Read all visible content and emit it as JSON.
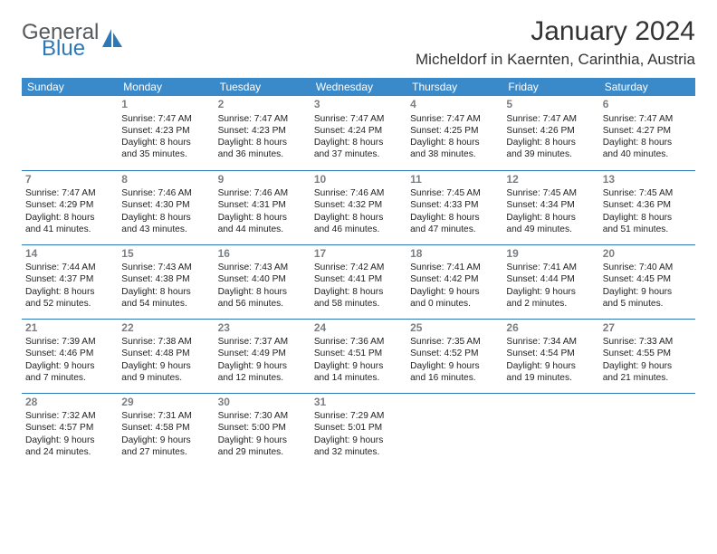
{
  "logo": {
    "word1": "General",
    "word2": "Blue",
    "icon_color": "#2f78b8"
  },
  "title": "January 2024",
  "location": "Micheldorf in Kaernten, Carinthia, Austria",
  "columns": [
    "Sunday",
    "Monday",
    "Tuesday",
    "Wednesday",
    "Thursday",
    "Friday",
    "Saturday"
  ],
  "header_bg": "#3a89c9",
  "accent": "#2f78b8",
  "weeks": [
    [
      null,
      {
        "n": "1",
        "sr": "7:47 AM",
        "ss": "4:23 PM",
        "d1": "8 hours",
        "d2": "and 35 minutes."
      },
      {
        "n": "2",
        "sr": "7:47 AM",
        "ss": "4:23 PM",
        "d1": "8 hours",
        "d2": "and 36 minutes."
      },
      {
        "n": "3",
        "sr": "7:47 AM",
        "ss": "4:24 PM",
        "d1": "8 hours",
        "d2": "and 37 minutes."
      },
      {
        "n": "4",
        "sr": "7:47 AM",
        "ss": "4:25 PM",
        "d1": "8 hours",
        "d2": "and 38 minutes."
      },
      {
        "n": "5",
        "sr": "7:47 AM",
        "ss": "4:26 PM",
        "d1": "8 hours",
        "d2": "and 39 minutes."
      },
      {
        "n": "6",
        "sr": "7:47 AM",
        "ss": "4:27 PM",
        "d1": "8 hours",
        "d2": "and 40 minutes."
      }
    ],
    [
      {
        "n": "7",
        "sr": "7:47 AM",
        "ss": "4:29 PM",
        "d1": "8 hours",
        "d2": "and 41 minutes."
      },
      {
        "n": "8",
        "sr": "7:46 AM",
        "ss": "4:30 PM",
        "d1": "8 hours",
        "d2": "and 43 minutes."
      },
      {
        "n": "9",
        "sr": "7:46 AM",
        "ss": "4:31 PM",
        "d1": "8 hours",
        "d2": "and 44 minutes."
      },
      {
        "n": "10",
        "sr": "7:46 AM",
        "ss": "4:32 PM",
        "d1": "8 hours",
        "d2": "and 46 minutes."
      },
      {
        "n": "11",
        "sr": "7:45 AM",
        "ss": "4:33 PM",
        "d1": "8 hours",
        "d2": "and 47 minutes."
      },
      {
        "n": "12",
        "sr": "7:45 AM",
        "ss": "4:34 PM",
        "d1": "8 hours",
        "d2": "and 49 minutes."
      },
      {
        "n": "13",
        "sr": "7:45 AM",
        "ss": "4:36 PM",
        "d1": "8 hours",
        "d2": "and 51 minutes."
      }
    ],
    [
      {
        "n": "14",
        "sr": "7:44 AM",
        "ss": "4:37 PM",
        "d1": "8 hours",
        "d2": "and 52 minutes."
      },
      {
        "n": "15",
        "sr": "7:43 AM",
        "ss": "4:38 PM",
        "d1": "8 hours",
        "d2": "and 54 minutes."
      },
      {
        "n": "16",
        "sr": "7:43 AM",
        "ss": "4:40 PM",
        "d1": "8 hours",
        "d2": "and 56 minutes."
      },
      {
        "n": "17",
        "sr": "7:42 AM",
        "ss": "4:41 PM",
        "d1": "8 hours",
        "d2": "and 58 minutes."
      },
      {
        "n": "18",
        "sr": "7:41 AM",
        "ss": "4:42 PM",
        "d1": "9 hours",
        "d2": "and 0 minutes."
      },
      {
        "n": "19",
        "sr": "7:41 AM",
        "ss": "4:44 PM",
        "d1": "9 hours",
        "d2": "and 2 minutes."
      },
      {
        "n": "20",
        "sr": "7:40 AM",
        "ss": "4:45 PM",
        "d1": "9 hours",
        "d2": "and 5 minutes."
      }
    ],
    [
      {
        "n": "21",
        "sr": "7:39 AM",
        "ss": "4:46 PM",
        "d1": "9 hours",
        "d2": "and 7 minutes."
      },
      {
        "n": "22",
        "sr": "7:38 AM",
        "ss": "4:48 PM",
        "d1": "9 hours",
        "d2": "and 9 minutes."
      },
      {
        "n": "23",
        "sr": "7:37 AM",
        "ss": "4:49 PM",
        "d1": "9 hours",
        "d2": "and 12 minutes."
      },
      {
        "n": "24",
        "sr": "7:36 AM",
        "ss": "4:51 PM",
        "d1": "9 hours",
        "d2": "and 14 minutes."
      },
      {
        "n": "25",
        "sr": "7:35 AM",
        "ss": "4:52 PM",
        "d1": "9 hours",
        "d2": "and 16 minutes."
      },
      {
        "n": "26",
        "sr": "7:34 AM",
        "ss": "4:54 PM",
        "d1": "9 hours",
        "d2": "and 19 minutes."
      },
      {
        "n": "27",
        "sr": "7:33 AM",
        "ss": "4:55 PM",
        "d1": "9 hours",
        "d2": "and 21 minutes."
      }
    ],
    [
      {
        "n": "28",
        "sr": "7:32 AM",
        "ss": "4:57 PM",
        "d1": "9 hours",
        "d2": "and 24 minutes."
      },
      {
        "n": "29",
        "sr": "7:31 AM",
        "ss": "4:58 PM",
        "d1": "9 hours",
        "d2": "and 27 minutes."
      },
      {
        "n": "30",
        "sr": "7:30 AM",
        "ss": "5:00 PM",
        "d1": "9 hours",
        "d2": "and 29 minutes."
      },
      {
        "n": "31",
        "sr": "7:29 AM",
        "ss": "5:01 PM",
        "d1": "9 hours",
        "d2": "and 32 minutes."
      },
      null,
      null,
      null
    ]
  ],
  "labels": {
    "sunrise": "Sunrise:",
    "sunset": "Sunset:",
    "daylight": "Daylight:"
  }
}
